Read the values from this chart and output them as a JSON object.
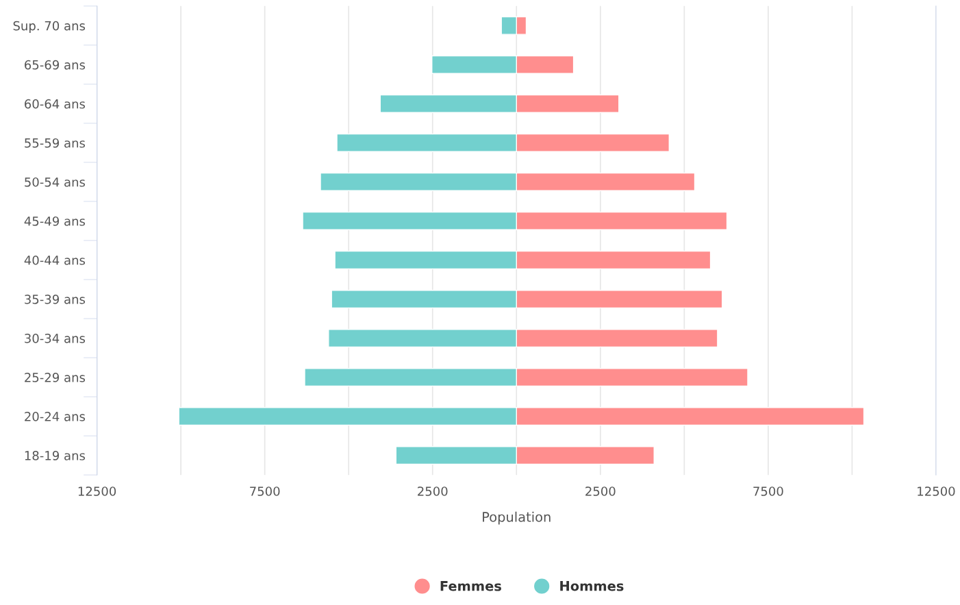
{
  "chart_data": {
    "type": "bar",
    "orientation": "horizontal",
    "xlabel": "Population",
    "categories": [
      "Sup. 70 ans",
      "65-69 ans",
      "60-64 ans",
      "55-59 ans",
      "50-54 ans",
      "45-49 ans",
      "40-44 ans",
      "35-39 ans",
      "30-34 ans",
      "25-29 ans",
      "20-24 ans",
      "18-19 ans"
    ],
    "series": [
      {
        "name": "Femmes",
        "color": "#ff8e8e",
        "values": [
          290,
          1700,
          3050,
          4550,
          5310,
          6270,
          5780,
          6130,
          5990,
          6890,
          10350,
          4100
        ]
      },
      {
        "name": "Hommes",
        "color": "#72d0ce",
        "values": [
          -450,
          -2520,
          -4060,
          -5350,
          -5840,
          -6370,
          -5410,
          -5510,
          -5600,
          -6310,
          -10060,
          -3590
        ]
      }
    ],
    "xlim": [
      -12500,
      12500
    ],
    "xticks": [
      {
        "value": -12500,
        "label": "12500"
      },
      {
        "value": -10000,
        "label": null
      },
      {
        "value": -7500,
        "label": "7500"
      },
      {
        "value": -5000,
        "label": null
      },
      {
        "value": -2500,
        "label": "2500"
      },
      {
        "value": 0,
        "label": null
      },
      {
        "value": 2500,
        "label": "2500"
      },
      {
        "value": 5000,
        "label": null
      },
      {
        "value": 7500,
        "label": "7500"
      },
      {
        "value": 10000,
        "label": null
      },
      {
        "value": 12500,
        "label": "12500"
      }
    ],
    "stacked": true,
    "grid": "x",
    "legend": "bottom",
    "marker": "circle"
  }
}
